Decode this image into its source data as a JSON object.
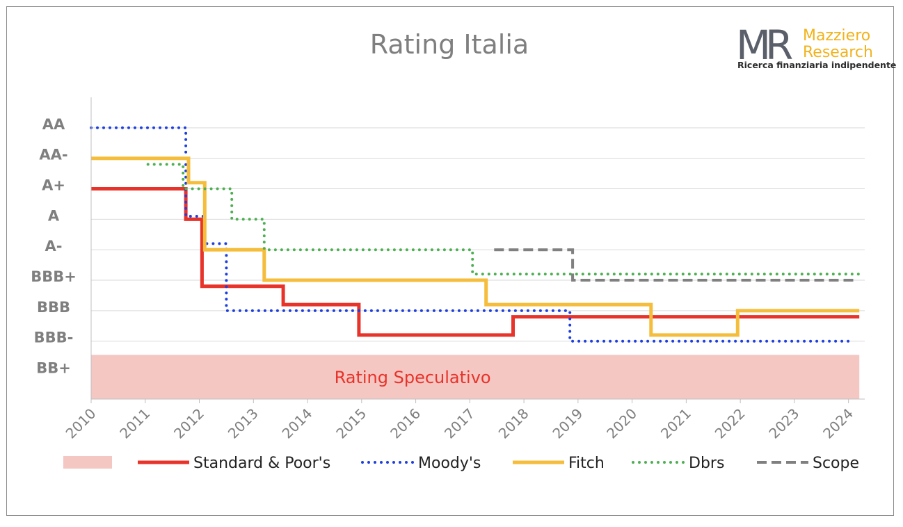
{
  "logo": {
    "mark": "MR",
    "name_line1": "Mazziero",
    "name_line2": "Research",
    "tagline": "Ricerca finanziaria indipendente"
  },
  "chart_data": {
    "type": "line",
    "title": "Rating Italia",
    "xlabel": "",
    "ylabel": "",
    "x_ticks": [
      "2010",
      "2011",
      "2012",
      "2013",
      "2014",
      "2015",
      "2016",
      "2017",
      "2018",
      "2019",
      "2020",
      "2021",
      "2022",
      "2023",
      "2024"
    ],
    "xlim": [
      2010,
      2024.3
    ],
    "y_levels": [
      "AA",
      "AA-",
      "A+",
      "A",
      "A-",
      "BBB+",
      "BBB",
      "BBB-",
      "BB+"
    ],
    "y_level_values": [
      9,
      8,
      7,
      6,
      5,
      4,
      3,
      2,
      1
    ],
    "ylim": [
      0.1,
      10
    ],
    "grid": true,
    "band": {
      "label": "Rating Speculativo",
      "y_from": 0.1,
      "y_to": 1.55,
      "x_from": 2010,
      "x_to": 2024.2,
      "color": "#f4c7c3"
    },
    "legend_placement": "bottom",
    "series": [
      {
        "name": "Standard & Poor's",
        "style": "solid",
        "color": "#e8332a",
        "points": [
          [
            2010,
            7
          ],
          [
            2011.75,
            7
          ],
          [
            2011.75,
            6
          ],
          [
            2012.05,
            6
          ],
          [
            2012.05,
            3.8
          ],
          [
            2013.55,
            3.8
          ],
          [
            2013.55,
            3.2
          ],
          [
            2014.95,
            3.2
          ],
          [
            2014.95,
            2.2
          ],
          [
            2017.8,
            2.2
          ],
          [
            2017.8,
            2.8
          ],
          [
            2024.2,
            2.8
          ]
        ]
      },
      {
        "name": "Moody's",
        "style": "dotted",
        "color": "#1d3fe0",
        "points": [
          [
            2010,
            9
          ],
          [
            2011.75,
            9
          ],
          [
            2011.75,
            6.1
          ],
          [
            2012.1,
            6.1
          ],
          [
            2012.1,
            5.2
          ],
          [
            2012.5,
            5.2
          ],
          [
            2012.5,
            3
          ],
          [
            2018.85,
            3
          ],
          [
            2018.85,
            2
          ],
          [
            2024.1,
            2
          ]
        ]
      },
      {
        "name": "Fitch",
        "style": "solid",
        "color": "#f5bd3c",
        "points": [
          [
            2010,
            8
          ],
          [
            2011.8,
            8
          ],
          [
            2011.8,
            7.2
          ],
          [
            2012.1,
            7.2
          ],
          [
            2012.1,
            5
          ],
          [
            2013.2,
            5
          ],
          [
            2013.2,
            4
          ],
          [
            2017.3,
            4
          ],
          [
            2017.3,
            3.2
          ],
          [
            2020.35,
            3.2
          ],
          [
            2020.35,
            2.2
          ],
          [
            2021.95,
            2.2
          ],
          [
            2021.95,
            3
          ],
          [
            2024.2,
            3
          ]
        ]
      },
      {
        "name": "Dbrs",
        "style": "dotted",
        "color": "#4caf50",
        "points": [
          [
            2011.05,
            7.8
          ],
          [
            2011.7,
            7.8
          ],
          [
            2011.7,
            7
          ],
          [
            2012.6,
            7
          ],
          [
            2012.6,
            6
          ],
          [
            2013.2,
            6
          ],
          [
            2013.2,
            5
          ],
          [
            2017.05,
            5
          ],
          [
            2017.05,
            4.2
          ],
          [
            2024.2,
            4.2
          ]
        ]
      },
      {
        "name": "Scope",
        "style": "dashed",
        "color": "#808080",
        "points": [
          [
            2017.45,
            5
          ],
          [
            2018.9,
            5
          ],
          [
            2018.9,
            4
          ],
          [
            2024.1,
            4
          ]
        ]
      }
    ]
  }
}
